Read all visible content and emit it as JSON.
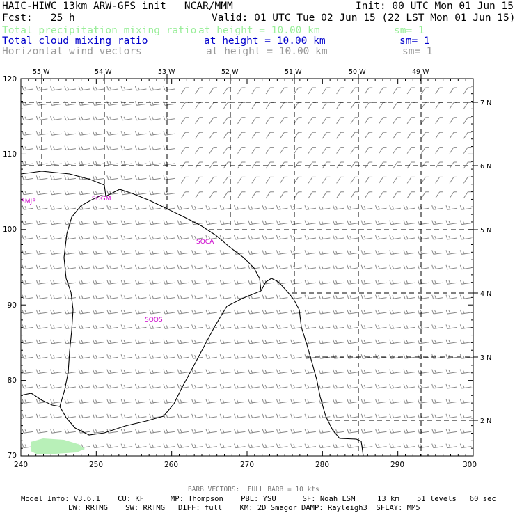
{
  "header": {
    "title_left": "HAIC-HIWC 13km ARW-GFS init   NCAR/MMM",
    "init": "Init: 00 UTC Mon 01 Jun 15",
    "fcst": "Fcst:   25 h",
    "valid": "Valid: 01 UTC Tue 02 Jun 15 (22 LST Mon 01 Jun 15)",
    "fields": [
      {
        "name": "Total precipitation mixing ratio",
        "height": "at height = 10.00 km",
        "sm": "sm= 1",
        "color": "#99ee99"
      },
      {
        "name": "Total cloud mixing ratio",
        "height": "at height = 10.00 km",
        "sm": "sm= 1",
        "color": "#0000cc"
      },
      {
        "name": "Horizontal wind vectors",
        "height": "at height = 10.00 km",
        "sm": "sm= 1",
        "color": "#999999"
      }
    ]
  },
  "map": {
    "top_lon_labels": [
      "55 W",
      "54 W",
      "53 W",
      "52 W",
      "51 W",
      "50 W",
      "49 W"
    ],
    "right_lat_labels": [
      "7 N",
      "6 N",
      "5 N",
      "4 N",
      "3 N",
      "2 N"
    ],
    "x_axis_ticks": [
      "240",
      "250",
      "260",
      "270",
      "280",
      "290",
      "300"
    ],
    "y_axis_ticks": [
      "120",
      "110",
      "100",
      "90",
      "80",
      "70"
    ],
    "stations": [
      "SMJP",
      "SOGM",
      "SOCA",
      "SOOS"
    ],
    "colors": {
      "coast": "#000000",
      "station": "#cc00cc",
      "barbs": "#888888",
      "precip": "#b8f0b8",
      "grid": "#000000"
    }
  },
  "footer": {
    "barb_note": "BARB VECTORS:  FULL BARB = 10 kts",
    "model_line1": "Model Info: V3.6.1    CU: KF      MP: Thompson    PBL: YSU      SF: Noah LSM     13 km    51 levels   60 sec",
    "model_line2": "LW: RRTMG    SW: RRTMG   DIFF: full    KM: 2D Smagor DAMP: Rayleigh3  SFLAY: MM5"
  }
}
